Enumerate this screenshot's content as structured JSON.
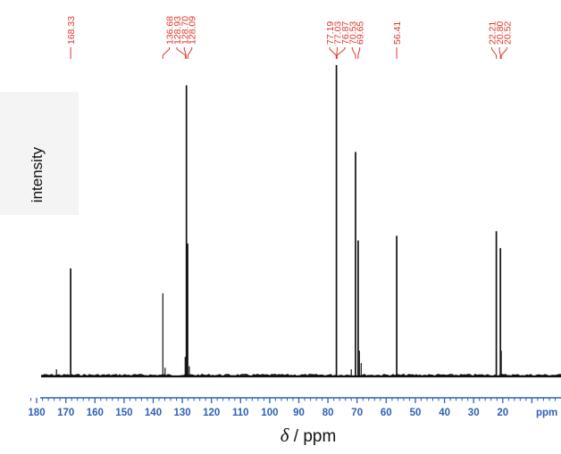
{
  "chart_data": {
    "type": "line",
    "title": "",
    "xlabel": {
      "symbol": "δ",
      "unit": " / ppm"
    },
    "ylabel": "intensity",
    "axis_unit_label": "ppm",
    "xlim": [
      184,
      0
    ],
    "ylim": [
      0,
      1
    ],
    "x_ticks": [
      180,
      170,
      160,
      150,
      140,
      130,
      120,
      110,
      100,
      90,
      80,
      70,
      60,
      50,
      40,
      30,
      20
    ],
    "peaks": [
      {
        "x": 173.2,
        "y": 0.02
      },
      {
        "x": 168.33,
        "y": 0.345
      },
      {
        "x": 136.68,
        "y": 0.265
      },
      {
        "x": 135.9,
        "y": 0.025
      },
      {
        "x": 129.0,
        "y": 0.06
      },
      {
        "x": 128.6,
        "y": 0.935
      },
      {
        "x": 128.2,
        "y": 0.425
      },
      {
        "x": 127.6,
        "y": 0.03
      },
      {
        "x": 77.1,
        "y": 1.0
      },
      {
        "x": 72.0,
        "y": 0.02
      },
      {
        "x": 70.53,
        "y": 0.72
      },
      {
        "x": 69.65,
        "y": 0.435
      },
      {
        "x": 69.2,
        "y": 0.08
      },
      {
        "x": 68.6,
        "y": 0.04
      },
      {
        "x": 56.41,
        "y": 0.45
      },
      {
        "x": 22.21,
        "y": 0.465
      },
      {
        "x": 20.8,
        "y": 0.41
      },
      {
        "x": 20.52,
        "y": 0.08
      }
    ],
    "peak_labels": [
      {
        "text": "168.33",
        "ppm": 168.33,
        "group": "a"
      },
      {
        "text": "136.68",
        "ppm": 136.68,
        "group": "b"
      },
      {
        "text": "128.93",
        "ppm": 128.93,
        "group": "b"
      },
      {
        "text": "128.70",
        "ppm": 128.7,
        "group": "b"
      },
      {
        "text": "128.09",
        "ppm": 128.09,
        "group": "b"
      },
      {
        "text": "77.19",
        "ppm": 77.19,
        "group": "c"
      },
      {
        "text": "77.03",
        "ppm": 77.03,
        "group": "c"
      },
      {
        "text": "76.87",
        "ppm": 76.87,
        "group": "c"
      },
      {
        "text": "70.53",
        "ppm": 70.53,
        "group": "c"
      },
      {
        "text": "69.65",
        "ppm": 69.65,
        "group": "c"
      },
      {
        "text": "56.41",
        "ppm": 56.41,
        "group": "d"
      },
      {
        "text": "22.21",
        "ppm": 22.21,
        "group": "e"
      },
      {
        "text": "20.80",
        "ppm": 20.8,
        "group": "e"
      },
      {
        "text": "20.52",
        "ppm": 20.52,
        "group": "e"
      }
    ],
    "grid": false,
    "legend": "none",
    "colors": {
      "spectrum": "#111111",
      "axis": "#2f5fb8",
      "peak_label": "#e0362c"
    }
  }
}
